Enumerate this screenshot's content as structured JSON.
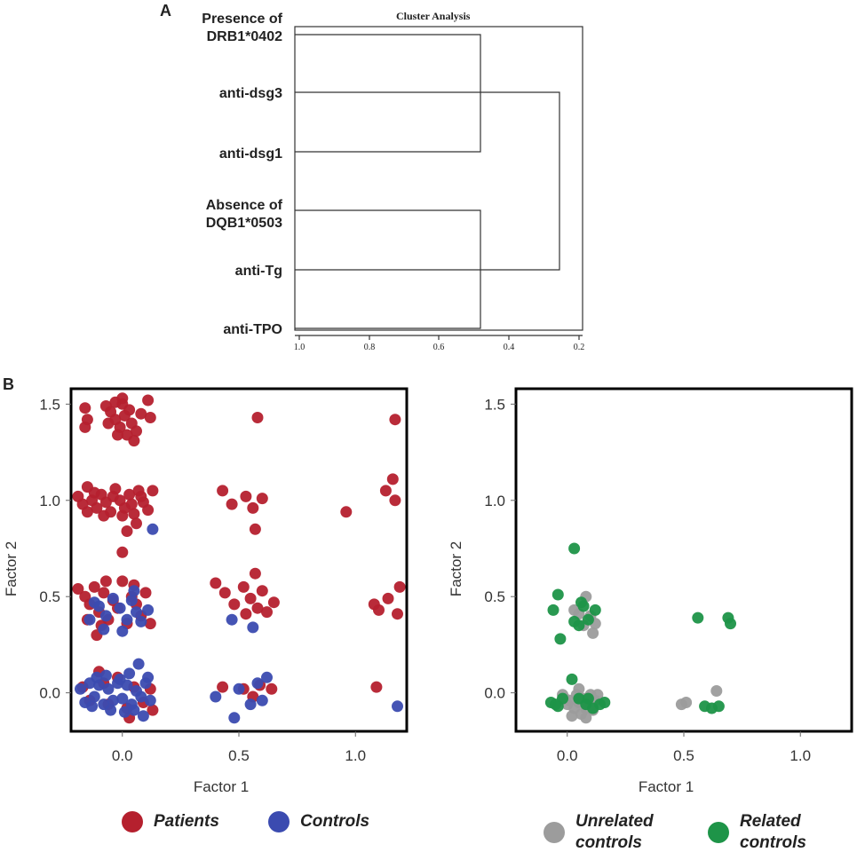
{
  "panel_a": {
    "letter": "A",
    "title": "Cluster Analysis",
    "labels": [
      {
        "line1": "Presence of",
        "line2": "DRB1*0402"
      },
      {
        "line1": "anti-dsg3",
        "line2": ""
      },
      {
        "line1": "anti-dsg1",
        "line2": ""
      },
      {
        "line1": "Absence of",
        "line2": "DQB1*0503"
      },
      {
        "line1": "anti-Tg",
        "line2": ""
      },
      {
        "line1": "anti-TPO",
        "line2": ""
      }
    ],
    "ticks": [
      "1.0",
      "0.8",
      "0.6",
      "0.4",
      "0.2"
    ]
  },
  "panel_b": {
    "letter": "B"
  },
  "legend_left": [
    {
      "label": "Patients",
      "color": "#b5202e"
    },
    {
      "label": "Controls",
      "color": "#3b4bb0"
    }
  ],
  "legend_right": [
    {
      "label_line1": "Unrelated",
      "label_line2": "controls",
      "color": "#9c9c9c"
    },
    {
      "label_line1": "Related",
      "label_line2": "controls",
      "color": "#1e9448"
    }
  ],
  "chart_data": [
    {
      "type": "dendrogram",
      "title": "Cluster Analysis",
      "leaves": [
        "Presence of DRB1*0402",
        "anti-dsg3",
        "anti-dsg1",
        "Absence of DQB1*0503",
        "anti-Tg",
        "anti-TPO"
      ],
      "axis_range": [
        1.0,
        0.2
      ],
      "ticks": [
        1.0,
        0.8,
        0.6,
        0.4,
        0.2
      ],
      "merges": [
        {
          "leaves": [
            "anti-dsg3",
            "anti-dsg1"
          ],
          "height": 1.0
        },
        {
          "leaves": [
            "Presence of DRB1*0402",
            "anti-dsg3",
            "anti-dsg1"
          ],
          "height": 0.48
        },
        {
          "leaves": [
            "anti-Tg",
            "anti-TPO"
          ],
          "height": 1.0
        },
        {
          "leaves": [
            "Absence of DQB1*0503",
            "anti-Tg",
            "anti-TPO"
          ],
          "height": 0.48
        },
        {
          "leaves": [
            "all"
          ],
          "height": 0.26
        }
      ]
    },
    {
      "type": "scatter",
      "xlabel": "Factor 1",
      "ylabel": "Factor 2",
      "xlim": [
        -0.22,
        1.22
      ],
      "ylim": [
        -0.2,
        1.58
      ],
      "xticks": [
        "0.0",
        "0.5",
        "1.0"
      ],
      "yticks": [
        "0.0",
        "0.5",
        "1.0",
        "1.5"
      ],
      "series": [
        {
          "name": "Patients",
          "color": "#b5202e",
          "points": [
            [
              -0.16,
              1.48
            ],
            [
              -0.15,
              1.42
            ],
            [
              -0.16,
              1.38
            ],
            [
              -0.07,
              1.49
            ],
            [
              -0.05,
              1.46
            ],
            [
              -0.03,
              1.42
            ],
            [
              -0.01,
              1.38
            ],
            [
              0.0,
              1.5
            ],
            [
              0.01,
              1.44
            ],
            [
              0.02,
              1.34
            ],
            [
              0.03,
              1.47
            ],
            [
              0.04,
              1.4
            ],
            [
              0.06,
              1.36
            ],
            [
              -0.02,
              1.34
            ],
            [
              -0.06,
              1.4
            ],
            [
              0.0,
              1.53
            ],
            [
              0.08,
              1.45
            ],
            [
              0.11,
              1.52
            ],
            [
              0.12,
              1.43
            ],
            [
              0.05,
              1.31
            ],
            [
              -0.03,
              1.51
            ],
            [
              0.58,
              1.43
            ],
            [
              1.17,
              1.42
            ],
            [
              -0.19,
              1.02
            ],
            [
              -0.17,
              0.98
            ],
            [
              -0.15,
              0.94
            ],
            [
              -0.13,
              1.0
            ],
            [
              -0.11,
              0.96
            ],
            [
              -0.09,
              1.03
            ],
            [
              -0.07,
              0.99
            ],
            [
              -0.05,
              0.94
            ],
            [
              -0.03,
              1.06
            ],
            [
              -0.01,
              1.0
            ],
            [
              0.01,
              0.96
            ],
            [
              0.03,
              1.03
            ],
            [
              0.05,
              0.93
            ],
            [
              0.07,
              1.05
            ],
            [
              0.09,
              0.99
            ],
            [
              0.11,
              0.95
            ],
            [
              0.13,
              1.05
            ],
            [
              -0.12,
              1.04
            ],
            [
              -0.08,
              0.92
            ],
            [
              -0.04,
              1.02
            ],
            [
              0.0,
              0.92
            ],
            [
              0.04,
              0.98
            ],
            [
              0.08,
              1.02
            ],
            [
              0.02,
              0.84
            ],
            [
              0.06,
              0.88
            ],
            [
              0.0,
              0.73
            ],
            [
              -0.15,
              1.07
            ],
            [
              0.43,
              1.05
            ],
            [
              0.47,
              0.98
            ],
            [
              0.53,
              1.02
            ],
            [
              0.56,
              0.96
            ],
            [
              0.6,
              1.01
            ],
            [
              0.57,
              0.85
            ],
            [
              0.96,
              0.94
            ],
            [
              1.13,
              1.05
            ],
            [
              1.16,
              1.11
            ],
            [
              1.17,
              1.0
            ],
            [
              -0.19,
              0.54
            ],
            [
              -0.16,
              0.5
            ],
            [
              -0.14,
              0.46
            ],
            [
              -0.12,
              0.55
            ],
            [
              -0.1,
              0.42
            ],
            [
              -0.08,
              0.52
            ],
            [
              -0.06,
              0.38
            ],
            [
              -0.04,
              0.48
            ],
            [
              -0.02,
              0.44
            ],
            [
              0.0,
              0.58
            ],
            [
              0.02,
              0.36
            ],
            [
              0.04,
              0.5
            ],
            [
              0.06,
              0.46
            ],
            [
              0.08,
              0.4
            ],
            [
              0.1,
              0.52
            ],
            [
              0.12,
              0.36
            ],
            [
              -0.11,
              0.3
            ],
            [
              -0.09,
              0.35
            ],
            [
              -0.07,
              0.58
            ],
            [
              -0.15,
              0.38
            ],
            [
              0.05,
              0.56
            ],
            [
              0.4,
              0.57
            ],
            [
              0.44,
              0.52
            ],
            [
              0.48,
              0.46
            ],
            [
              0.52,
              0.55
            ],
            [
              0.55,
              0.49
            ],
            [
              0.58,
              0.44
            ],
            [
              0.6,
              0.53
            ],
            [
              0.62,
              0.42
            ],
            [
              0.65,
              0.47
            ],
            [
              0.57,
              0.62
            ],
            [
              0.53,
              0.41
            ],
            [
              1.08,
              0.46
            ],
            [
              1.1,
              0.43
            ],
            [
              1.14,
              0.49
            ],
            [
              1.18,
              0.41
            ],
            [
              1.19,
              0.55
            ],
            [
              -0.17,
              0.03
            ],
            [
              -0.14,
              -0.04
            ],
            [
              -0.1,
              0.11
            ],
            [
              -0.06,
              -0.06
            ],
            [
              -0.02,
              0.08
            ],
            [
              0.02,
              -0.08
            ],
            [
              0.05,
              0.03
            ],
            [
              0.09,
              -0.05
            ],
            [
              0.12,
              0.02
            ],
            [
              0.13,
              -0.09
            ],
            [
              0.03,
              -0.13
            ],
            [
              -0.08,
              0.05
            ],
            [
              0.43,
              0.03
            ],
            [
              0.52,
              0.02
            ],
            [
              0.56,
              -0.02
            ],
            [
              0.59,
              0.04
            ],
            [
              0.64,
              0.02
            ],
            [
              1.09,
              0.03
            ]
          ]
        },
        {
          "name": "Controls",
          "color": "#3b4bb0",
          "points": [
            [
              -0.18,
              0.02
            ],
            [
              -0.16,
              -0.05
            ],
            [
              -0.14,
              0.05
            ],
            [
              -0.12,
              -0.02
            ],
            [
              -0.1,
              0.04
            ],
            [
              -0.08,
              -0.06
            ],
            [
              -0.06,
              0.02
            ],
            [
              -0.04,
              -0.04
            ],
            [
              -0.02,
              0.05
            ],
            [
              0.0,
              -0.03
            ],
            [
              0.02,
              0.04
            ],
            [
              0.04,
              -0.06
            ],
            [
              0.06,
              0.01
            ],
            [
              0.08,
              -0.02
            ],
            [
              0.1,
              0.05
            ],
            [
              0.12,
              -0.04
            ],
            [
              -0.11,
              0.08
            ],
            [
              -0.07,
              0.09
            ],
            [
              0.03,
              0.1
            ],
            [
              0.07,
              0.15
            ],
            [
              -0.05,
              -0.09
            ],
            [
              0.01,
              -0.1
            ],
            [
              -0.13,
              -0.07
            ],
            [
              0.05,
              -0.09
            ],
            [
              0.11,
              0.08
            ],
            [
              0.09,
              -0.12
            ],
            [
              -0.01,
              0.07
            ],
            [
              -0.14,
              0.38
            ],
            [
              -0.1,
              0.45
            ],
            [
              -0.07,
              0.4
            ],
            [
              -0.04,
              0.49
            ],
            [
              -0.01,
              0.44
            ],
            [
              0.02,
              0.38
            ],
            [
              0.04,
              0.48
            ],
            [
              0.06,
              0.42
            ],
            [
              0.08,
              0.37
            ],
            [
              -0.08,
              0.33
            ],
            [
              0.0,
              0.32
            ],
            [
              0.05,
              0.53
            ],
            [
              -0.12,
              0.47
            ],
            [
              0.11,
              0.43
            ],
            [
              0.13,
              0.85
            ],
            [
              0.4,
              -0.02
            ],
            [
              0.48,
              -0.13
            ],
            [
              0.5,
              0.02
            ],
            [
              0.55,
              -0.06
            ],
            [
              0.58,
              0.05
            ],
            [
              0.6,
              -0.04
            ],
            [
              0.62,
              0.08
            ],
            [
              0.47,
              0.38
            ],
            [
              0.56,
              0.34
            ],
            [
              1.18,
              -0.07
            ]
          ]
        }
      ]
    },
    {
      "type": "scatter",
      "xlabel": "Factor 1",
      "ylabel": "Factor 2",
      "xlim": [
        -0.22,
        1.22
      ],
      "ylim": [
        -0.2,
        1.58
      ],
      "xticks": [
        "0.0",
        "0.5",
        "1.0"
      ],
      "yticks": [
        "0.0",
        "0.5",
        "1.0",
        "1.5"
      ],
      "series": [
        {
          "name": "Unrelated controls",
          "color": "#9c9c9c",
          "points": [
            [
              -0.02,
              -0.01
            ],
            [
              0.01,
              -0.04
            ],
            [
              0.03,
              -0.08
            ],
            [
              0.04,
              -0.01
            ],
            [
              0.05,
              -0.05
            ],
            [
              0.06,
              -0.11
            ],
            [
              0.07,
              -0.03
            ],
            [
              0.08,
              -0.08
            ],
            [
              0.09,
              -0.06
            ],
            [
              0.1,
              -0.01
            ],
            [
              0.11,
              -0.09
            ],
            [
              0.12,
              -0.04
            ],
            [
              0.13,
              -0.01
            ],
            [
              0.02,
              -0.12
            ],
            [
              0.08,
              -0.13
            ],
            [
              0.05,
              0.02
            ],
            [
              0.0,
              -0.06
            ],
            [
              -0.01,
              -0.03
            ],
            [
              0.03,
              0.43
            ],
            [
              0.05,
              0.41
            ],
            [
              0.08,
              0.5
            ],
            [
              0.1,
              0.4
            ],
            [
              0.11,
              0.31
            ],
            [
              0.12,
              0.36
            ],
            [
              0.07,
              0.35
            ],
            [
              0.49,
              -0.06
            ],
            [
              0.51,
              -0.05
            ],
            [
              0.64,
              0.01
            ]
          ]
        },
        {
          "name": "Related controls",
          "color": "#1e9448",
          "points": [
            [
              0.03,
              0.75
            ],
            [
              -0.04,
              0.51
            ],
            [
              -0.06,
              0.43
            ],
            [
              -0.03,
              0.28
            ],
            [
              0.06,
              0.47
            ],
            [
              0.03,
              0.37
            ],
            [
              0.05,
              0.35
            ],
            [
              0.07,
              0.45
            ],
            [
              0.09,
              0.38
            ],
            [
              0.12,
              0.43
            ],
            [
              -0.07,
              -0.05
            ],
            [
              -0.04,
              -0.07
            ],
            [
              -0.02,
              -0.03
            ],
            [
              0.02,
              0.07
            ],
            [
              0.05,
              -0.03
            ],
            [
              0.08,
              -0.06
            ],
            [
              0.11,
              -0.08
            ],
            [
              0.14,
              -0.06
            ],
            [
              0.16,
              -0.05
            ],
            [
              -0.05,
              -0.06
            ],
            [
              0.09,
              -0.03
            ],
            [
              0.56,
              0.39
            ],
            [
              0.69,
              0.39
            ],
            [
              0.7,
              0.36
            ],
            [
              0.59,
              -0.07
            ],
            [
              0.62,
              -0.08
            ],
            [
              0.65,
              -0.07
            ]
          ]
        }
      ]
    }
  ]
}
